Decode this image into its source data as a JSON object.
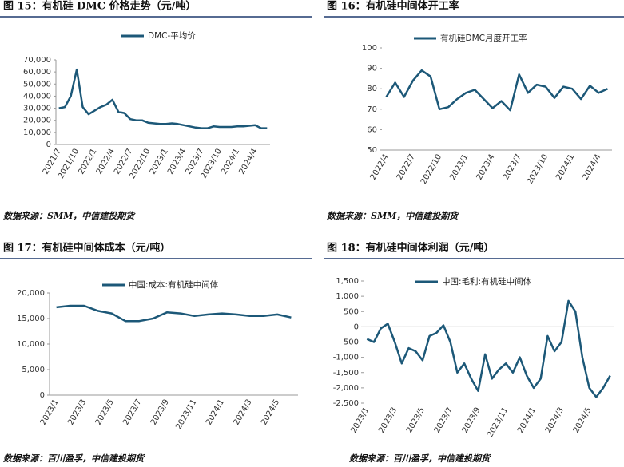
{
  "chart_data": [
    {
      "type": "line",
      "title": "图 15：有机硅 DMC 价格走势（元/吨）",
      "source": "数据来源：SMM，中信建投期货",
      "categories": [
        "2021/7",
        null,
        null,
        "2021/10",
        null,
        null,
        "2022/1",
        null,
        null,
        "2022/4",
        null,
        null,
        "2022/7",
        null,
        null,
        "2022/10",
        null,
        null,
        "2023/1",
        null,
        null,
        "2023/4",
        null,
        null,
        "2023/7",
        null,
        null,
        "2023/10",
        null,
        null,
        "2024/1",
        null,
        null,
        "2024/4",
        null,
        null
      ],
      "series": [
        {
          "name": "DMC-平均价",
          "color": "#1c5878",
          "values": [
            30000,
            31000,
            40000,
            62000,
            31000,
            25000,
            28000,
            31000,
            33000,
            37000,
            27000,
            26000,
            21000,
            20000,
            20000,
            18000,
            17500,
            17000,
            17000,
            17500,
            17000,
            16000,
            15000,
            14000,
            13500,
            13500,
            15000,
            14500,
            14500,
            14500,
            15000,
            15000,
            15500,
            16000,
            13500,
            13500
          ]
        }
      ],
      "ylim": [
        0,
        70000
      ],
      "yticks": [
        0,
        {
          "value": 10000,
          "label": "10,000"
        },
        {
          "value": 20000,
          "label": "20,000"
        },
        {
          "value": 30000,
          "label": "30,000"
        },
        {
          "value": 40000,
          "label": "40,000"
        },
        {
          "value": 50000,
          "label": "50,000"
        },
        {
          "value": 60000,
          "label": "60,000"
        },
        {
          "value": 70000,
          "label": "70,000"
        }
      ]
    },
    {
      "type": "line",
      "title": "图 16：有机硅中间体开工率",
      "source": "数据来源：SMM，中信建投期货",
      "categories": [
        "2022/4",
        null,
        null,
        "2022/7",
        null,
        null,
        "2022/10",
        null,
        null,
        "2023/1",
        null,
        null,
        "2023/4",
        null,
        null,
        "2023/7",
        null,
        null,
        "2023/10",
        null,
        null,
        "2024/1",
        null,
        null,
        "2024/4",
        null
      ],
      "series": [
        {
          "name": "有机硅DMC月度开工率",
          "color": "#1c5878",
          "values": [
            76,
            83,
            76,
            84,
            89,
            86,
            70,
            71,
            75,
            78,
            79.5,
            75,
            70.5,
            74,
            69.5,
            87,
            78,
            82,
            81,
            75.5,
            81,
            80,
            75,
            81.5,
            78,
            80
          ]
        }
      ],
      "ylim": [
        50,
        100
      ],
      "yticks": [
        50,
        60,
        70,
        80,
        90,
        100
      ]
    },
    {
      "type": "line",
      "title": "图 17：有机硅中间体成本（元/吨）",
      "source": "数据来源：百川盈孚，中信建投期货",
      "categories": [
        "2023/1",
        null,
        "2023/3",
        null,
        "2023/5",
        null,
        "2023/7",
        null,
        "2023/9",
        null,
        "2023/11",
        null,
        "2024/1",
        null,
        "2024/3",
        null,
        "2024/5",
        null
      ],
      "series": [
        {
          "name": "中国:成本:有机硅中间体",
          "color": "#1c5878",
          "values": [
            17200,
            17500,
            17500,
            16500,
            16000,
            14500,
            14500,
            15000,
            16200,
            16000,
            15500,
            15800,
            16000,
            15800,
            15500,
            15500,
            15800,
            15200
          ]
        }
      ],
      "ylim": [
        0,
        20000
      ],
      "yticks": [
        0,
        {
          "value": 5000,
          "label": "5,000"
        },
        {
          "value": 10000,
          "label": "10,000"
        },
        {
          "value": 15000,
          "label": "15,000"
        },
        {
          "value": 20000,
          "label": "20,000"
        }
      ]
    },
    {
      "type": "line",
      "title": "图 18：有机硅中间体利润（元/吨）",
      "source": "数据来源：百川盈孚，中信建投期货",
      "categories": [
        "2023/1",
        null,
        null,
        null,
        "2023/3",
        null,
        null,
        null,
        "2023/5",
        null,
        null,
        null,
        "2023/7",
        null,
        null,
        null,
        "2023/9",
        null,
        null,
        null,
        "2023/11",
        null,
        null,
        null,
        "2024/1",
        null,
        null,
        null,
        "2024/3",
        null,
        null,
        null,
        "2024/5",
        null,
        null,
        null
      ],
      "series": [
        {
          "name": "中国:毛利:有机硅中间体",
          "color": "#1c5878",
          "values": [
            -400,
            -500,
            -50,
            100,
            -500,
            -1200,
            -700,
            -800,
            -1100,
            -300,
            -200,
            50,
            -500,
            -1500,
            -1200,
            -1700,
            -2100,
            -900,
            -1700,
            -1400,
            -1200,
            -1500,
            -1000,
            -1600,
            -2000,
            -1700,
            -300,
            -800,
            -500,
            850,
            500,
            -1000,
            -2000,
            -2300,
            -2000,
            -1600
          ]
        }
      ],
      "ylim": [
        -2500,
        1500
      ],
      "yticks": [
        {
          "value": -2500,
          "label": "-2,500"
        },
        {
          "value": -2000,
          "label": "-2,000"
        },
        {
          "value": -1500,
          "label": "-1,500"
        },
        {
          "value": -1000,
          "label": "-1,000"
        },
        -500,
        0,
        500,
        {
          "value": 1000,
          "label": "1,000"
        },
        {
          "value": 1500,
          "label": "1,500"
        }
      ]
    }
  ]
}
